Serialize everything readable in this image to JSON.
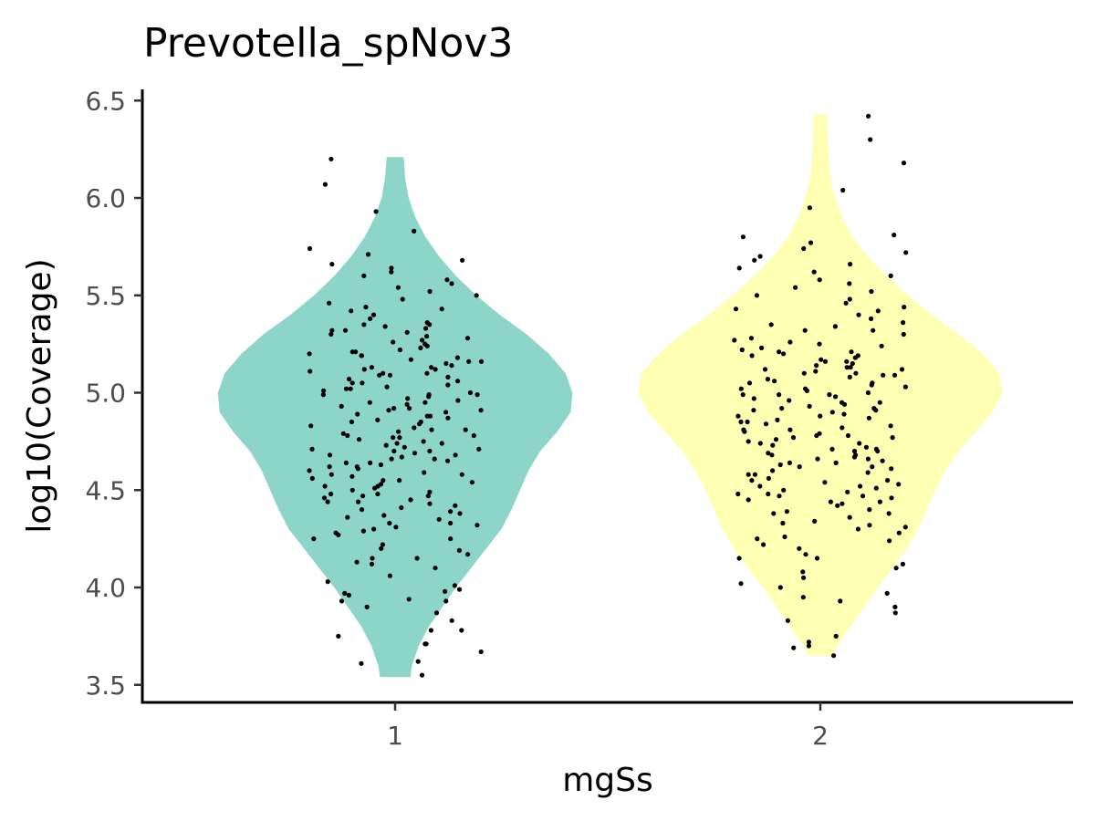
{
  "chart_data": {
    "type": "violin",
    "title": "Prevotella_spNov3",
    "xlabel": "mgSs",
    "ylabel": "log10(Coverage)",
    "categories": [
      "1",
      "2"
    ],
    "ylim": [
      3.45,
      6.55
    ],
    "yticks": [
      3.5,
      4.0,
      4.5,
      5.0,
      5.5,
      6.0,
      6.5
    ],
    "ytick_labels": [
      "3.5",
      "4.0",
      "4.5",
      "5.0",
      "5.5",
      "6.0",
      "6.5"
    ],
    "grid": false,
    "legend": "none",
    "series": [
      {
        "category": "1",
        "color": "#8ED5C9",
        "range": [
          3.54,
          6.21
        ],
        "density": [
          [
            3.54,
            0.045
          ],
          [
            3.6,
            0.05
          ],
          [
            3.7,
            0.07
          ],
          [
            3.8,
            0.1
          ],
          [
            3.9,
            0.14
          ],
          [
            4.0,
            0.18
          ],
          [
            4.1,
            0.225
          ],
          [
            4.2,
            0.27
          ],
          [
            4.3,
            0.315
          ],
          [
            4.4,
            0.345
          ],
          [
            4.5,
            0.37
          ],
          [
            4.6,
            0.395
          ],
          [
            4.7,
            0.43
          ],
          [
            4.8,
            0.48
          ],
          [
            4.9,
            0.52
          ],
          [
            5.0,
            0.525
          ],
          [
            5.1,
            0.505
          ],
          [
            5.2,
            0.455
          ],
          [
            5.3,
            0.39
          ],
          [
            5.4,
            0.31
          ],
          [
            5.5,
            0.24
          ],
          [
            5.6,
            0.18
          ],
          [
            5.7,
            0.13
          ],
          [
            5.8,
            0.09
          ],
          [
            5.9,
            0.06
          ],
          [
            6.0,
            0.04
          ],
          [
            6.1,
            0.03
          ],
          [
            6.21,
            0.025
          ]
        ],
        "points_y": [
          3.55,
          3.61,
          3.62,
          3.67,
          3.71,
          3.71,
          3.75,
          3.78,
          3.78,
          3.83,
          3.87,
          3.9,
          3.93,
          3.93,
          3.94,
          3.96,
          3.97,
          3.98,
          3.99,
          4.01,
          4.03,
          4.06,
          4.1,
          4.12,
          4.13,
          4.15,
          4.17,
          4.19,
          4.2,
          4.22,
          4.25,
          4.27,
          4.28,
          4.29,
          4.3,
          4.31,
          4.32,
          4.33,
          4.35,
          4.36,
          4.37,
          4.38,
          4.39,
          4.4,
          4.41,
          4.42,
          4.43,
          4.44,
          4.45,
          4.46,
          4.47,
          4.48,
          4.49,
          4.5,
          4.51,
          4.52,
          4.53,
          4.54,
          4.55,
          4.56,
          4.57,
          4.58,
          4.59,
          4.6,
          4.61,
          4.62,
          4.63,
          4.64,
          4.65,
          4.66,
          4.67,
          4.68,
          4.69,
          4.7,
          4.71,
          4.72,
          4.73,
          4.74,
          4.75,
          4.76,
          4.77,
          4.78,
          4.79,
          4.8,
          4.81,
          4.82,
          4.83,
          4.84,
          4.85,
          4.86,
          4.87,
          4.88,
          4.89,
          4.9,
          4.91,
          4.92,
          4.93,
          4.94,
          4.95,
          4.96,
          4.97,
          4.98,
          4.99,
          5.0,
          5.01,
          5.02,
          5.03,
          5.04,
          5.05,
          5.06,
          5.07,
          5.08,
          5.09,
          5.1,
          5.11,
          5.12,
          5.13,
          5.14,
          5.15,
          5.16,
          5.17,
          5.18,
          5.19,
          5.2,
          5.21,
          5.22,
          5.23,
          5.24,
          5.25,
          5.26,
          5.27,
          5.28,
          5.29,
          5.3,
          5.31,
          5.32,
          5.33,
          5.34,
          5.35,
          5.36,
          5.38,
          5.4,
          5.42,
          5.44,
          5.46,
          5.48,
          5.5,
          5.52,
          5.54,
          5.56,
          5.58,
          5.6,
          5.62,
          5.64,
          5.66,
          5.68,
          5.71,
          5.74,
          5.83,
          5.93,
          6.07,
          6.2,
          4.62,
          4.68,
          4.74,
          4.81,
          4.88,
          4.95,
          5.02,
          5.09,
          5.16,
          4.47,
          4.52,
          4.58,
          4.64,
          4.71,
          4.78,
          4.85,
          4.92,
          4.99,
          5.05,
          5.12,
          5.19,
          4.33,
          4.44,
          4.55,
          4.66,
          4.77,
          4.99,
          5.1,
          5.21,
          5.32,
          5.43,
          4.25,
          4.48,
          4.7,
          4.91,
          5.13,
          5.35,
          4.15
        ]
      },
      {
        "category": "2",
        "color": "#FFFFB3",
        "range": [
          3.65,
          6.43
        ],
        "density": [
          [
            3.65,
            0.035
          ],
          [
            3.7,
            0.05
          ],
          [
            3.8,
            0.09
          ],
          [
            3.9,
            0.13
          ],
          [
            4.0,
            0.17
          ],
          [
            4.1,
            0.215
          ],
          [
            4.2,
            0.255
          ],
          [
            4.3,
            0.29
          ],
          [
            4.4,
            0.315
          ],
          [
            4.5,
            0.34
          ],
          [
            4.6,
            0.37
          ],
          [
            4.7,
            0.41
          ],
          [
            4.8,
            0.46
          ],
          [
            4.9,
            0.51
          ],
          [
            5.0,
            0.54
          ],
          [
            5.1,
            0.53
          ],
          [
            5.2,
            0.48
          ],
          [
            5.3,
            0.41
          ],
          [
            5.4,
            0.33
          ],
          [
            5.5,
            0.26
          ],
          [
            5.6,
            0.195
          ],
          [
            5.7,
            0.14
          ],
          [
            5.8,
            0.095
          ],
          [
            5.9,
            0.065
          ],
          [
            6.0,
            0.045
          ],
          [
            6.1,
            0.03
          ],
          [
            6.2,
            0.025
          ],
          [
            6.3,
            0.022
          ],
          [
            6.43,
            0.02
          ]
        ],
        "points_y": [
          3.65,
          3.69,
          3.7,
          3.72,
          3.75,
          3.83,
          3.87,
          3.9,
          3.93,
          3.95,
          3.97,
          4.0,
          4.02,
          4.05,
          4.08,
          4.1,
          4.12,
          4.15,
          4.17,
          4.2,
          4.22,
          4.24,
          4.26,
          4.28,
          4.3,
          4.31,
          4.32,
          4.34,
          4.36,
          4.38,
          4.39,
          4.4,
          4.42,
          4.43,
          4.44,
          4.45,
          4.46,
          4.47,
          4.48,
          4.49,
          4.5,
          4.51,
          4.52,
          4.53,
          4.54,
          4.55,
          4.56,
          4.58,
          4.6,
          4.61,
          4.62,
          4.63,
          4.64,
          4.65,
          4.66,
          4.67,
          4.68,
          4.69,
          4.7,
          4.71,
          4.72,
          4.73,
          4.74,
          4.75,
          4.76,
          4.77,
          4.78,
          4.79,
          4.8,
          4.81,
          4.82,
          4.83,
          4.84,
          4.85,
          4.86,
          4.87,
          4.88,
          4.89,
          4.9,
          4.91,
          4.92,
          4.93,
          4.94,
          4.95,
          4.96,
          4.97,
          4.98,
          4.99,
          5.0,
          5.01,
          5.02,
          5.03,
          5.04,
          5.05,
          5.06,
          5.07,
          5.08,
          5.09,
          5.1,
          5.11,
          5.12,
          5.13,
          5.14,
          5.15,
          5.16,
          5.17,
          5.18,
          5.19,
          5.2,
          5.21,
          5.22,
          5.23,
          5.24,
          5.25,
          5.26,
          5.27,
          5.28,
          5.3,
          5.32,
          5.34,
          5.36,
          5.38,
          5.4,
          5.42,
          5.44,
          5.46,
          5.48,
          5.5,
          5.52,
          5.54,
          5.56,
          5.58,
          5.6,
          5.62,
          5.64,
          5.66,
          5.68,
          5.7,
          5.72,
          5.74,
          5.77,
          5.8,
          5.81,
          5.95,
          6.04,
          6.18,
          6.3,
          6.42,
          4.62,
          4.68,
          4.74,
          4.81,
          4.88,
          4.95,
          5.02,
          5.09,
          5.16,
          4.47,
          4.52,
          4.58,
          4.64,
          4.71,
          4.78,
          4.85,
          4.92,
          4.99,
          5.05,
          5.12,
          5.19,
          4.33,
          4.44,
          4.55,
          4.66,
          4.77,
          4.99,
          5.1,
          5.21,
          5.32,
          5.43,
          4.25,
          4.48,
          4.7,
          4.91,
          5.13,
          5.35,
          4.15,
          4.38,
          4.59
        ]
      }
    ]
  }
}
